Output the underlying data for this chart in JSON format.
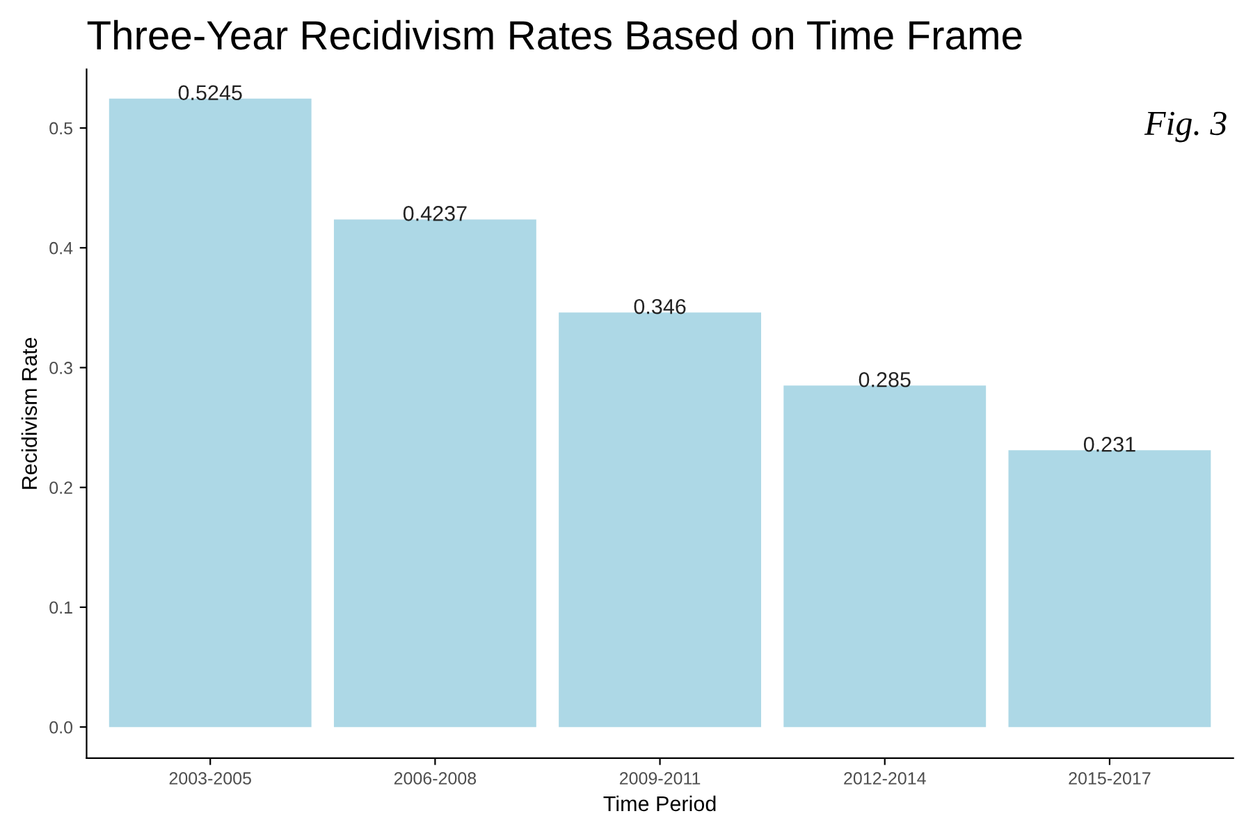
{
  "chart_data": {
    "type": "bar",
    "title": "Three-Year Recidivism Rates Based on Time Frame",
    "xlabel": "Time Period",
    "ylabel": "Recidivism Rate",
    "categories": [
      "2003-2005",
      "2006-2008",
      "2009-2011",
      "2012-2014",
      "2015-2017"
    ],
    "values": [
      0.5245,
      0.4237,
      0.346,
      0.285,
      0.231
    ],
    "color": "#add8e6",
    "ylim": [
      -0.026,
      0.549
    ],
    "yticks": [
      {
        "value": 0,
        "label": "0.0"
      },
      0.1,
      0.2,
      0.3,
      0.4,
      0.5
    ],
    "data_labels": true,
    "grid": false,
    "annotations": [
      "Fig. 3"
    ]
  }
}
